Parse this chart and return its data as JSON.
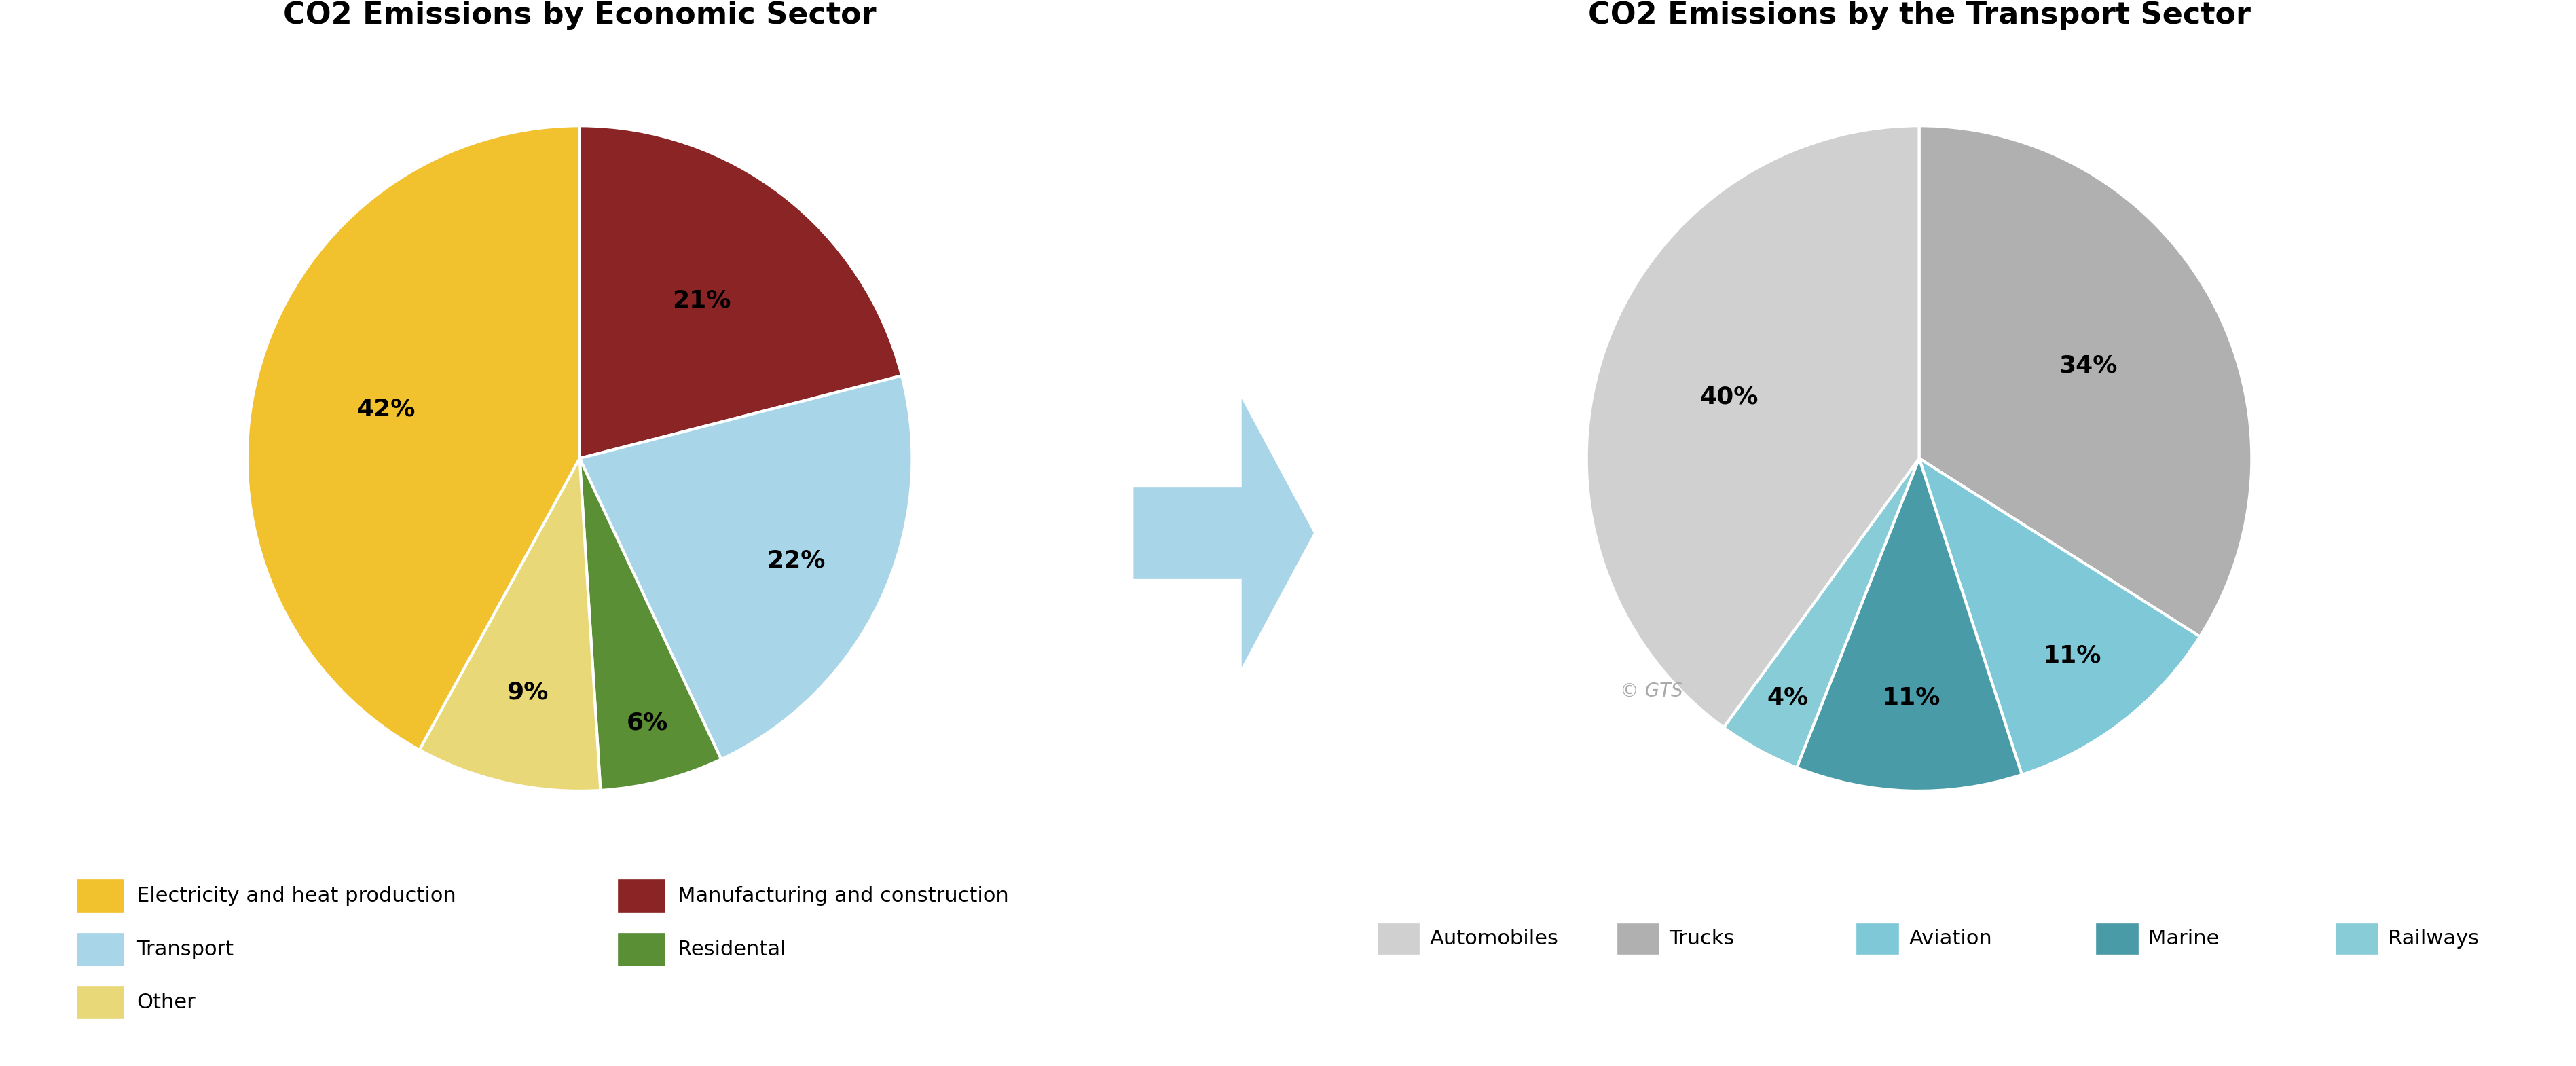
{
  "fig_width": 37.94,
  "fig_height": 15.7,
  "bg_color": "#ffffff",
  "left_title": "CO2 Emissions by Economic Sector",
  "left_values": [
    42,
    21,
    22,
    6,
    9
  ],
  "left_colors": [
    "#F2C12E",
    "#8B2525",
    "#A8D5E8",
    "#5A8F35",
    "#E8D878"
  ],
  "left_labels": [
    "42%",
    "21%",
    "22%",
    "6%",
    "9%"
  ],
  "left_legend": [
    {
      "label": "Electricity and heat production",
      "color": "#F2C12E"
    },
    {
      "label": "Manufacturing and construction",
      "color": "#8B2525"
    },
    {
      "label": "Transport",
      "color": "#A8D5E8"
    },
    {
      "label": "Residental",
      "color": "#5A8F35"
    },
    {
      "label": "Other",
      "color": "#E8D878"
    }
  ],
  "right_title": "CO2 Emissions by the Transport Sector",
  "right_values": [
    34,
    11,
    11,
    4,
    40
  ],
  "right_colors": [
    "#B0B0B0",
    "#7EC8D8",
    "#4A9BA8",
    "#88CCD8",
    "#D0D0D0"
  ],
  "right_labels": [
    "34%",
    "11%",
    "11%",
    "4%",
    "40%"
  ],
  "right_legend": [
    {
      "label": "Automobiles",
      "color": "#D0D0D0"
    },
    {
      "label": "Trucks",
      "color": "#B0B0B0"
    },
    {
      "label": "Aviation",
      "color": "#7EC8D8"
    },
    {
      "label": "Marine",
      "color": "#4A9BA8"
    },
    {
      "label": "Railways",
      "color": "#88CCD8"
    }
  ],
  "copyright_text": "© GTS",
  "label_fontsize": 26,
  "title_fontsize": 32,
  "legend_fontsize": 22
}
